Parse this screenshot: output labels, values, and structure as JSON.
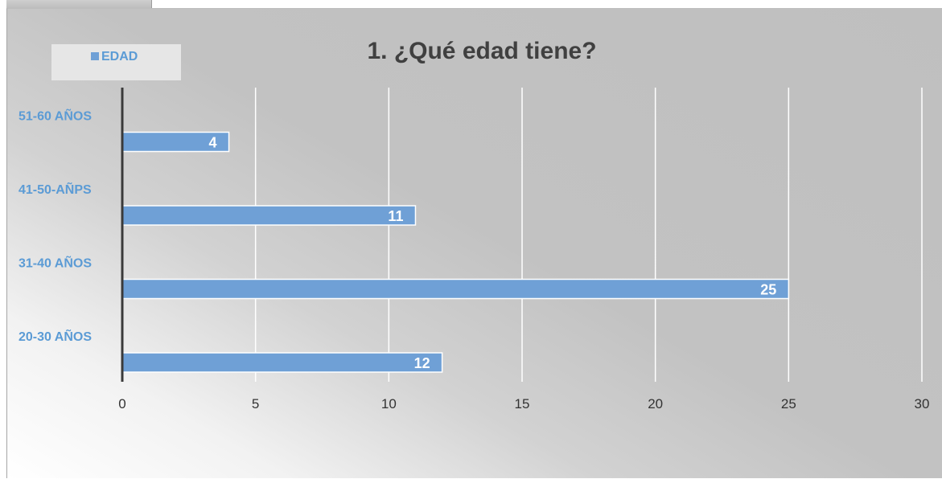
{
  "chart_data": {
    "type": "bar",
    "orientation": "horizontal",
    "title": "1. ¿Qué edad tiene?",
    "categories": [
      "51-60 AÑOS",
      "41-50-AÑPS",
      "31-40 AÑOS",
      "20-30 AÑOS"
    ],
    "series": [
      {
        "name": "EDAD",
        "values": [
          4,
          11,
          25,
          12
        ]
      }
    ],
    "xlim": [
      0,
      30
    ],
    "x_ticks": [
      "0",
      "5",
      "10",
      "15",
      "20",
      "25",
      "30"
    ],
    "grid": "vertical",
    "legend_position": "top-left",
    "data_labels": true,
    "colors": {
      "bar": "#6fa0d6",
      "bar_border": "#ffffff",
      "category_text": "#5b9bd5",
      "title_text": "#404040",
      "axis_text": "#333333",
      "gridline": "#ffffff",
      "axis_line": "#3a3a3a",
      "legend_box": "#e6e6e6"
    }
  }
}
